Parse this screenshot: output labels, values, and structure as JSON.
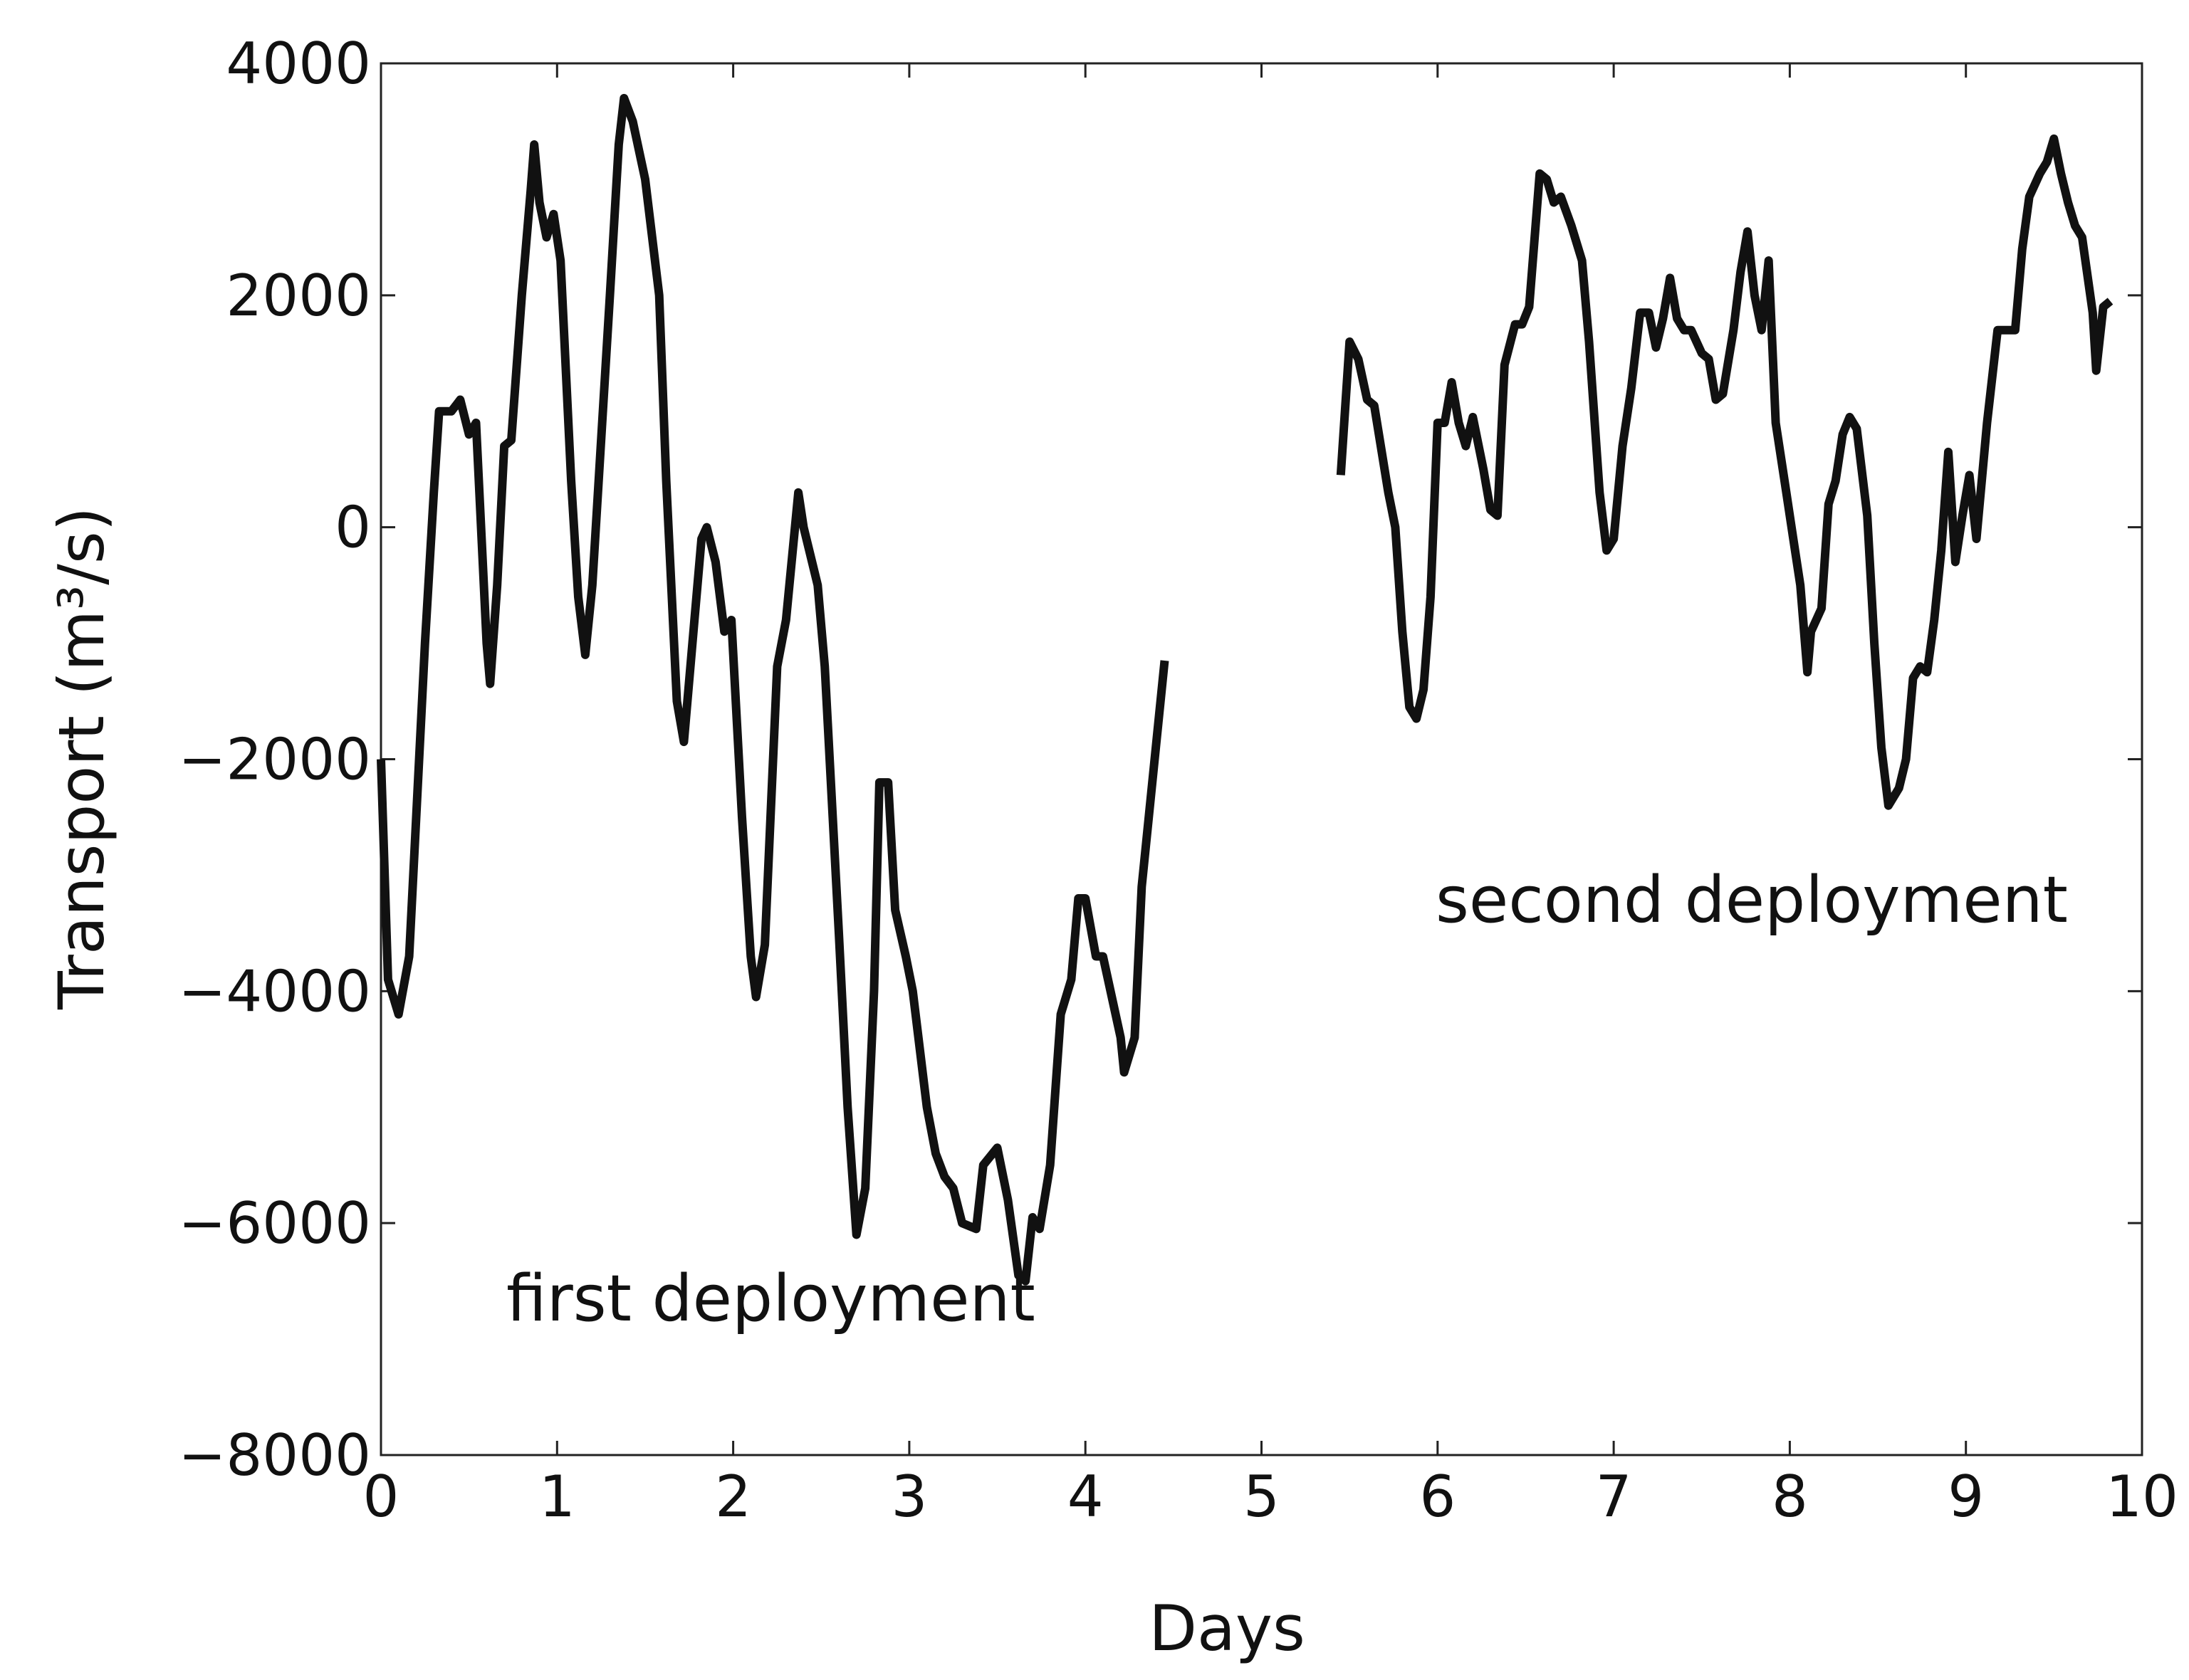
{
  "chart_data": {
    "type": "line",
    "title": null,
    "xlabel": "Days",
    "ylabel": "Transport (m³/s)",
    "annotations": [
      "first deployment",
      "second deployment"
    ],
    "xlim": [
      0,
      10
    ],
    "ylim": [
      -8000,
      4000
    ],
    "xticks": [
      0,
      1,
      2,
      3,
      4,
      5,
      6,
      7,
      8,
      9,
      10
    ],
    "yticks": [
      {
        "value": -8000,
        "label": "−8000"
      },
      {
        "value": -6000,
        "label": "−6000"
      },
      {
        "value": -4000,
        "label": "−4000"
      },
      {
        "value": -2000,
        "label": "−2000"
      },
      0,
      2000,
      4000
    ],
    "grid": false,
    "color": "#111111",
    "x": [
      0,
      0.04,
      0.1,
      0.16,
      0.25,
      0.3,
      0.33,
      0.4,
      0.45,
      0.5,
      0.54,
      0.6,
      0.62,
      0.66,
      0.7,
      0.74,
      0.8,
      0.85,
      0.87,
      0.9,
      0.94,
      0.98,
      1.02,
      1.08,
      1.12,
      1.16,
      1.2,
      1.3,
      1.35,
      1.38,
      1.43,
      1.5,
      1.58,
      1.62,
      1.68,
      1.72,
      1.78,
      1.82,
      1.85,
      1.9,
      1.95,
      1.99,
      2.05,
      2.1,
      2.13,
      2.18,
      2.25,
      2.3,
      2.37,
      2.4,
      2.48,
      2.52,
      2.6,
      2.65,
      2.7,
      2.75,
      2.8,
      2.83,
      2.88,
      2.92,
      2.98,
      3.02,
      3.1,
      3.15,
      3.2,
      3.25,
      3.3,
      3.38,
      3.42,
      3.5,
      3.56,
      3.62,
      3.66,
      3.7,
      3.74,
      3.8,
      3.86,
      3.92,
      3.96,
      4.0,
      4.06,
      4.1,
      4.2,
      4.22,
      4.28,
      4.32,
      4.45,
      5.0,
      5.45,
      5.5,
      5.55,
      5.6,
      5.64,
      5.72,
      5.76,
      5.8,
      5.84,
      5.88,
      5.92,
      5.96,
      6.0,
      6.04,
      6.08,
      6.12,
      6.16,
      6.2,
      6.26,
      6.3,
      6.34,
      6.38,
      6.44,
      6.48,
      6.52,
      6.58,
      6.62,
      6.66,
      6.7,
      6.76,
      6.82,
      6.86,
      6.92,
      6.96,
      7.0,
      7.05,
      7.1,
      7.15,
      7.2,
      7.24,
      7.28,
      7.32,
      7.36,
      7.4,
      7.44,
      7.5,
      7.54,
      7.58,
      7.62,
      7.68,
      7.72,
      7.76,
      7.8,
      7.84,
      7.88,
      7.92,
      7.98,
      8.02,
      8.06,
      8.1,
      8.12,
      8.18,
      8.22,
      8.26,
      8.3,
      8.34,
      8.38,
      8.44,
      8.48,
      8.52,
      8.56,
      8.62,
      8.66,
      8.7,
      8.74,
      8.78,
      8.82,
      8.86,
      8.9,
      8.94,
      8.98,
      9.02,
      9.06,
      9.12,
      9.18,
      9.22,
      9.28,
      9.32,
      9.36,
      9.42,
      9.46,
      9.5,
      9.54,
      9.58,
      9.62,
      9.66,
      9.72,
      9.74,
      9.78,
      9.82
    ],
    "values": [
      -2000,
      -3900,
      -4200,
      -3700,
      -1000,
      300,
      1000,
      1000,
      1100,
      800,
      900,
      -1000,
      -1350,
      -500,
      700,
      750,
      2000,
      2900,
      3300,
      2800,
      2500,
      2700,
      2300,
      400,
      -600,
      -1100,
      -500,
      2000,
      3300,
      3700,
      3500,
      3000,
      2000,
      400,
      -1500,
      -1850,
      -800,
      -100,
      0,
      -300,
      -900,
      -800,
      -2500,
      -3700,
      -4050,
      -3600,
      -1200,
      -800,
      300,
      0,
      -500,
      -1200,
      -3500,
      -5000,
      -6100,
      -5700,
      -4000,
      -2200,
      -2200,
      -3300,
      -3700,
      -4000,
      -5000,
      -5400,
      -5600,
      -5700,
      -6000,
      -6050,
      -5500,
      -5350,
      -5800,
      -6450,
      -6500,
      -5950,
      -6050,
      -5500,
      -4200,
      -3900,
      -3200,
      -3200,
      -3700,
      -3700,
      -4400,
      -4700,
      -4400,
      -3100,
      -1150,
      null,
      450,
      1600,
      1450,
      1100,
      1050,
      300,
      0,
      -900,
      -1550,
      -1650,
      -1400,
      -600,
      900,
      900,
      1250,
      900,
      700,
      950,
      500,
      150,
      100,
      1400,
      1750,
      1750,
      1900,
      3050,
      3000,
      2800,
      2850,
      2600,
      2300,
      1600,
      300,
      -200,
      -100,
      700,
      1200,
      1850,
      1850,
      1550,
      1800,
      2150,
      1800,
      1700,
      1700,
      1500,
      1450,
      1100,
      1150,
      1700,
      2200,
      2550,
      2000,
      1700,
      2300,
      900,
      300,
      -100,
      -500,
      -1250,
      -900,
      -700,
      200,
      400,
      800,
      950,
      850,
      100,
      -1000,
      -1900,
      -2400,
      -2250,
      -2000,
      -1300,
      -1200,
      -1250,
      -800,
      -200,
      650,
      -300,
      100,
      450,
      -100,
      900,
      1700,
      1700,
      1700,
      2400,
      2850,
      3050,
      3150,
      3350,
      3050,
      2800,
      2600,
      2500,
      1850,
      1350,
      1900,
      1950
    ]
  }
}
